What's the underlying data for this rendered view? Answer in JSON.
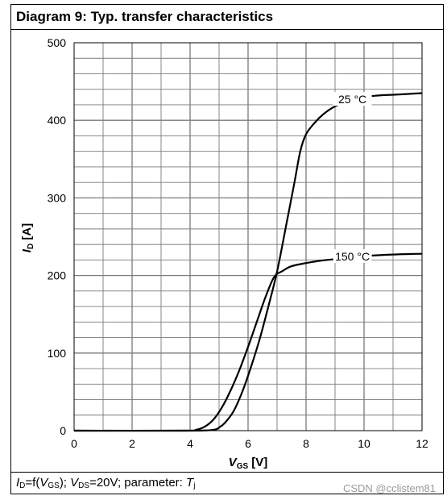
{
  "title": "Diagram 9: Typ. transfer characteristics",
  "caption": {
    "id": "I",
    "id_sub": "D",
    "mid1": "=f(",
    "vgs": "V",
    "vgs_sub": "GS",
    "mid2": "); ",
    "vds": "V",
    "vds_sub": "DS",
    "mid3": "=20V; parameter: ",
    "tj": "T",
    "tj_sub": "j"
  },
  "watermark": "CSDN @cclistem81",
  "colors": {
    "curve": "#000000",
    "grid": "#7a7a7a",
    "frame": "#000000"
  },
  "chart_data": {
    "type": "line",
    "xlabel": {
      "main": "V",
      "sub": "GS",
      "unit": " [V]"
    },
    "ylabel": {
      "main": "I",
      "sub": "D",
      "unit": " [A]"
    },
    "xlim": [
      0,
      12
    ],
    "ylim": [
      0,
      500
    ],
    "xticks": [
      0,
      2,
      4,
      6,
      8,
      10,
      12
    ],
    "yticks": [
      0,
      100,
      200,
      300,
      400,
      500
    ],
    "grid": true,
    "series": [
      {
        "name": "25 °C",
        "x": [
          0,
          4.0,
          4.8,
          5.0,
          5.2,
          5.5,
          5.8,
          6.1,
          6.4,
          6.7,
          7.0,
          7.3,
          7.6,
          7.8,
          8.0,
          8.3,
          8.6,
          9.0,
          9.5,
          10.0,
          10.5,
          11.0,
          12.0
        ],
        "y": [
          0,
          0,
          1,
          4,
          10,
          25,
          50,
          82,
          118,
          160,
          205,
          262,
          320,
          360,
          382,
          397,
          408,
          418,
          425,
          430,
          432,
          433,
          435
        ]
      },
      {
        "name": "150 °C",
        "x": [
          0,
          3.8,
          4.2,
          4.5,
          4.8,
          5.1,
          5.4,
          5.7,
          6.0,
          6.3,
          6.6,
          6.9,
          7.2,
          7.5,
          8.0,
          8.5,
          9.0,
          9.5,
          10.0,
          11.0,
          12.0
        ],
        "y": [
          0,
          0,
          1,
          5,
          14,
          30,
          52,
          78,
          108,
          140,
          172,
          198,
          206,
          212,
          216,
          219,
          221,
          223,
          225,
          227,
          228
        ]
      }
    ],
    "annotations": [
      {
        "text": "25 °C",
        "series": "25 °C"
      },
      {
        "text": "150 °C",
        "series": "150 °C"
      }
    ]
  }
}
